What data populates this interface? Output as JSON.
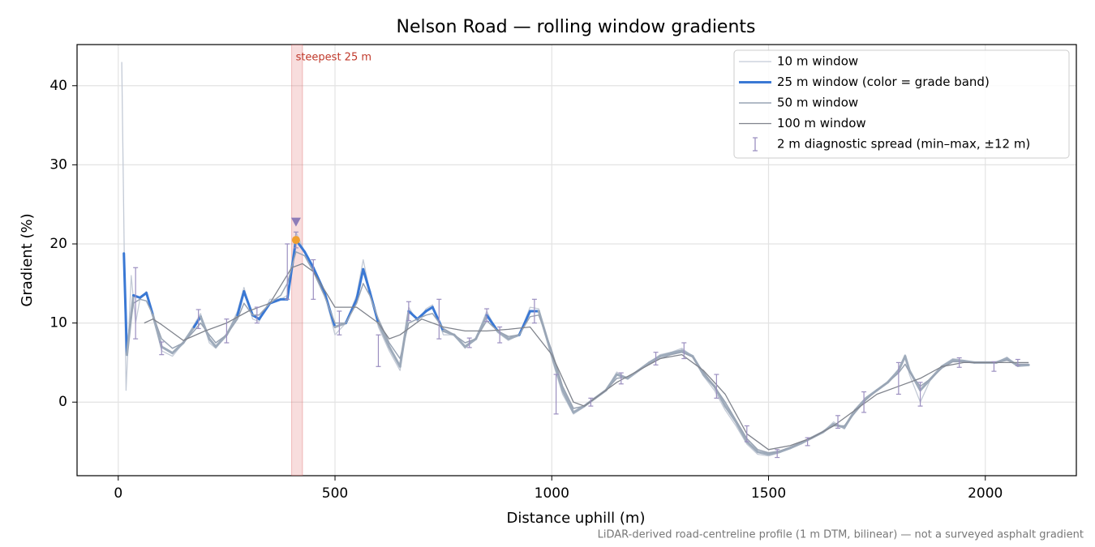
{
  "chart_data": {
    "type": "line",
    "title": "Nelson Road — rolling window gradients",
    "xlabel": "Distance uphill (m)",
    "ylabel": "Gradient (%)",
    "footnote": "LiDAR-derived road-centreline profile (1 m DTM, bilinear) — not a surveyed asphalt gradient",
    "xlim": [
      -95,
      2210
    ],
    "ylim": [
      -9.3,
      45.2
    ],
    "xticks": [
      0,
      500,
      1000,
      1500,
      2000
    ],
    "yticks": [
      0,
      10,
      20,
      30,
      40
    ],
    "grid": true,
    "legend": "upper right",
    "series": [
      {
        "name": "10 m window",
        "color": "#c3cad6",
        "width": 1.3,
        "x": [
          8,
          18,
          30,
          40,
          50,
          65,
          80,
          100,
          125,
          150,
          175,
          190,
          210,
          225,
          250,
          275,
          290,
          310,
          325,
          350,
          375,
          390,
          410,
          430,
          450,
          475,
          500,
          525,
          550,
          565,
          580,
          600,
          625,
          650,
          670,
          690,
          710,
          725,
          750,
          775,
          800,
          825,
          850,
          875,
          900,
          925,
          950,
          970,
          1000,
          1025,
          1050,
          1075,
          1100,
          1125,
          1150,
          1175,
          1200,
          1225,
          1250,
          1275,
          1300,
          1325,
          1350,
          1375,
          1400,
          1425,
          1450,
          1475,
          1500,
          1525,
          1550,
          1575,
          1600,
          1625,
          1650,
          1675,
          1700,
          1725,
          1750,
          1775,
          1800,
          1815,
          1825,
          1850,
          1875,
          1900,
          1925,
          1950,
          1975,
          2000,
          2025,
          2050,
          2075,
          2100
        ],
        "values": [
          43,
          1.5,
          16,
          10,
          13,
          14,
          11,
          6.5,
          5.8,
          7.5,
          9.8,
          11.2,
          7.5,
          6.8,
          8.5,
          11.5,
          14.5,
          10.5,
          10.2,
          13,
          13,
          13.5,
          21.5,
          19,
          17,
          14,
          8.5,
          10,
          13.5,
          18,
          14,
          9.5,
          6.5,
          4,
          12,
          10.2,
          11.8,
          12.3,
          8.5,
          8.5,
          6.8,
          8,
          11.5,
          8.8,
          7.8,
          8.5,
          12,
          11.8,
          5.5,
          1,
          -1.5,
          -0.6,
          0.5,
          1.5,
          3.8,
          3,
          4,
          5,
          6,
          6.3,
          6.8,
          5.8,
          3.3,
          1.5,
          -1,
          -3,
          -5.3,
          -6.6,
          -6.8,
          -6.4,
          -5.8,
          -5.2,
          -4.5,
          -3.8,
          -2.5,
          -3.4,
          -1,
          0.5,
          1.5,
          2.5,
          4.2,
          6,
          3.5,
          0,
          3,
          4.6,
          5.5,
          5.3,
          5,
          5,
          5,
          5.7,
          4.5,
          4.8
        ]
      },
      {
        "name": "25 m window (color = grade band)",
        "color": "#3a78d4",
        "width": 3,
        "band_threshold": 10,
        "band_below_color": "#9eabbb",
        "x": [
          13,
          20,
          35,
          50,
          65,
          80,
          100,
          125,
          150,
          175,
          190,
          210,
          225,
          250,
          275,
          290,
          310,
          325,
          350,
          375,
          390,
          410,
          430,
          450,
          475,
          500,
          525,
          550,
          565,
          580,
          600,
          625,
          650,
          670,
          690,
          710,
          725,
          750,
          775,
          800,
          825,
          850,
          875,
          900,
          925,
          950,
          970,
          1000,
          1025,
          1050,
          1075,
          1100,
          1125,
          1150,
          1175,
          1200,
          1225,
          1250,
          1275,
          1300,
          1325,
          1350,
          1375,
          1400,
          1425,
          1450,
          1475,
          1500,
          1525,
          1550,
          1575,
          1600,
          1625,
          1650,
          1675,
          1700,
          1725,
          1750,
          1775,
          1800,
          1815,
          1825,
          1850,
          1875,
          1900,
          1925,
          1950,
          1975,
          2000,
          2025,
          2050,
          2075,
          2100
        ],
        "values": [
          18.8,
          6,
          13.5,
          13.2,
          13.8,
          11,
          7,
          6.2,
          7.5,
          9.5,
          10.8,
          8,
          7,
          8.5,
          11,
          14,
          11,
          10.5,
          12.5,
          13,
          13,
          20.5,
          19,
          17,
          14,
          9.5,
          10,
          13,
          16.8,
          14,
          10,
          7,
          4.5,
          11.5,
          10.5,
          11.5,
          12,
          9,
          8.5,
          7,
          8,
          11,
          9,
          8,
          8.5,
          11.5,
          11.5,
          6,
          1.5,
          -1.3,
          -0.5,
          0.5,
          1.5,
          3.5,
          3,
          4,
          5,
          5.8,
          6.2,
          6.5,
          5.8,
          3.5,
          2,
          -0.5,
          -2.5,
          -5,
          -6.3,
          -6.6,
          -6.3,
          -5.8,
          -5.2,
          -4.5,
          -3.8,
          -2.8,
          -3.2,
          -1,
          0.5,
          1.5,
          2.5,
          4,
          5.8,
          4,
          1.5,
          3,
          4.5,
          5.3,
          5.2,
          5,
          5,
          5,
          5.5,
          4.6,
          4.7
        ]
      },
      {
        "name": "50 m window",
        "color": "#98a3b3",
        "width": 1.5,
        "x": [
          25,
          35,
          50,
          65,
          80,
          100,
          125,
          150,
          175,
          190,
          210,
          225,
          250,
          275,
          290,
          310,
          325,
          350,
          375,
          390,
          410,
          430,
          450,
          475,
          500,
          525,
          550,
          565,
          580,
          600,
          625,
          650,
          670,
          690,
          710,
          725,
          750,
          775,
          800,
          825,
          850,
          875,
          900,
          925,
          950,
          970,
          1000,
          1025,
          1050,
          1075,
          1100,
          1125,
          1150,
          1175,
          1200,
          1225,
          1250,
          1275,
          1300,
          1325,
          1350,
          1375,
          1400,
          1425,
          1450,
          1475,
          1500,
          1525,
          1550,
          1575,
          1600,
          1625,
          1650,
          1675,
          1700,
          1725,
          1750,
          1775,
          1800,
          1815,
          1825,
          1850,
          1875,
          1900,
          1925,
          1950,
          1975,
          2000,
          2025,
          2050,
          2075,
          2100
        ],
        "values": [
          9,
          12.5,
          13,
          12.8,
          11,
          8,
          6.8,
          7.5,
          9,
          10,
          8.5,
          7.5,
          8.5,
          10.5,
          12.5,
          11,
          11,
          12.5,
          13.5,
          15,
          19,
          18.5,
          16.5,
          13.5,
          10,
          10,
          12.5,
          15,
          13.5,
          10.5,
          7.5,
          5.5,
          10,
          10.5,
          11,
          11.2,
          9.3,
          8.5,
          7.5,
          8,
          10.3,
          9,
          8.3,
          8.5,
          10.8,
          11,
          6.5,
          2,
          -0.8,
          -0.5,
          0.5,
          1.5,
          3,
          3.2,
          4,
          4.8,
          5.5,
          6,
          6.3,
          5.7,
          3.8,
          2,
          0,
          -2.3,
          -4.6,
          -6,
          -6.4,
          -6.2,
          -5.7,
          -5.1,
          -4.5,
          -3.8,
          -3,
          -3,
          -1.3,
          0.3,
          1.5,
          2.5,
          3.7,
          4.8,
          3.8,
          2,
          3,
          4.3,
          5.1,
          5.1,
          5,
          5,
          5,
          5.3,
          4.8,
          4.8
        ]
      },
      {
        "name": "100 m window",
        "color": "#7f838c",
        "width": 1.3,
        "x": [
          60,
          80,
          100,
          150,
          200,
          250,
          300,
          350,
          400,
          425,
          450,
          500,
          550,
          600,
          625,
          650,
          700,
          750,
          800,
          850,
          900,
          950,
          1000,
          1050,
          1075,
          1100,
          1150,
          1200,
          1250,
          1300,
          1350,
          1400,
          1450,
          1500,
          1550,
          1600,
          1650,
          1700,
          1750,
          1800,
          1850,
          1900,
          1950,
          2000,
          2050,
          2100
        ],
        "values": [
          10,
          10.5,
          9.8,
          7.8,
          9,
          10,
          11.5,
          12.5,
          17,
          17.5,
          16.5,
          12,
          12,
          10,
          8,
          8.5,
          10.5,
          9.5,
          9,
          9,
          9.2,
          9.5,
          6,
          0,
          -0.5,
          0.5,
          2.5,
          4,
          5.5,
          6,
          4,
          1,
          -4,
          -6,
          -5.5,
          -4.5,
          -3,
          -1,
          1,
          2,
          3,
          4.5,
          5,
          5,
          5,
          5
        ]
      }
    ],
    "errorbars": {
      "name": "2 m diagnostic spread (min–max, ±12 m)",
      "color": "#9b8fc0",
      "x": [
        40,
        100,
        185,
        250,
        320,
        390,
        410,
        450,
        510,
        600,
        670,
        740,
        810,
        850,
        880,
        960,
        1010,
        1090,
        1160,
        1240,
        1305,
        1380,
        1450,
        1520,
        1590,
        1660,
        1720,
        1800,
        1850,
        1940,
        2020,
        2075
      ],
      "values": [
        12.5,
        6.8,
        10.5,
        9,
        11,
        16.5,
        20.5,
        15.5,
        10,
        6.5,
        11.5,
        10.5,
        7.5,
        11,
        8.5,
        11.5,
        1,
        0,
        3,
        5.5,
        6.5,
        2,
        -4,
        -6.5,
        -5,
        -2.5,
        0,
        3,
        1,
        5,
        4.5,
        5
      ],
      "errors": [
        4.5,
        0.8,
        1.2,
        1.5,
        1,
        3.5,
        1,
        2.5,
        1.5,
        2,
        1.2,
        2.5,
        0.6,
        0.8,
        1,
        1.5,
        2.5,
        0.5,
        0.7,
        0.8,
        1,
        1.5,
        1,
        0.5,
        0.5,
        0.8,
        1.3,
        2,
        1.5,
        0.6,
        0.6,
        0.4
      ]
    },
    "highlight": {
      "label": "steepest 25 m",
      "span": [
        400,
        425
      ],
      "color": "#e06666",
      "x": 410,
      "value": 20.5,
      "marker_color": "#f0a030",
      "pointer_value": 22.8,
      "pointer_color": "#8e7cb8"
    }
  }
}
